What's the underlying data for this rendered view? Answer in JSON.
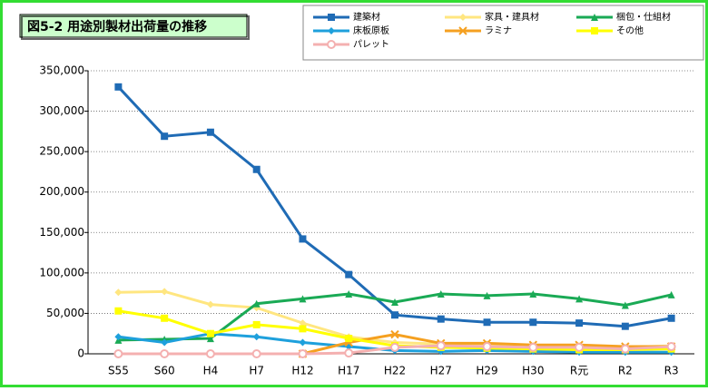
{
  "chart_data": {
    "type": "line",
    "title": "図5-2 用途別製材出荷量の推移",
    "categories": [
      "S55",
      "S60",
      "H4",
      "H7",
      "H12",
      "H17",
      "H22",
      "H27",
      "H29",
      "H30",
      "R元",
      "R2",
      "R3"
    ],
    "ylim": [
      0,
      350000
    ],
    "yticks": [
      0,
      {
        "value": 50000,
        "label": "50,000"
      },
      {
        "value": 100000,
        "label": "100,000"
      },
      {
        "value": 150000,
        "label": "150,000"
      },
      {
        "value": 200000,
        "label": "200,000"
      },
      {
        "value": 250000,
        "label": "250,000"
      },
      {
        "value": 300000,
        "label": "300,000"
      },
      {
        "value": 350000,
        "label": "350,000"
      }
    ],
    "grid": true,
    "series": [
      {
        "name": "建築材",
        "color": "#1f6bb5",
        "marker": "square",
        "values": [
          330000,
          269000,
          274000,
          228000,
          142000,
          98000,
          48000,
          43000,
          39000,
          39000,
          38000,
          34000,
          44000
        ]
      },
      {
        "name": "家具・建具材",
        "color": "#ffe680",
        "marker": "diamond",
        "values": [
          76000,
          77000,
          61000,
          57000,
          38000,
          21000,
          14000,
          12000,
          12000,
          10000,
          10000,
          8000,
          10000
        ]
      },
      {
        "name": "梱包・仕組材",
        "color": "#1aaa55",
        "marker": "triangle",
        "values": [
          17000,
          18000,
          19000,
          62000,
          68000,
          74000,
          64000,
          74000,
          72000,
          74000,
          68000,
          60000,
          73000
        ]
      },
      {
        "name": "床板原板",
        "color": "#1ea0dc",
        "marker": "diamond",
        "values": [
          21000,
          14000,
          25000,
          21000,
          14000,
          9000,
          4000,
          3000,
          4000,
          3000,
          2000,
          2000,
          2000
        ]
      },
      {
        "name": "ラミナ",
        "color": "#f5a020",
        "marker": "x",
        "values": [
          null,
          null,
          null,
          null,
          0,
          14000,
          24000,
          13000,
          13000,
          11000,
          11000,
          9000,
          9000
        ]
      },
      {
        "name": "その他",
        "color": "#ffff00",
        "marker": "square",
        "values": [
          53000,
          44000,
          25000,
          36000,
          31000,
          19000,
          10000,
          8000,
          7000,
          6000,
          5000,
          5000,
          6000
        ]
      },
      {
        "name": "パレット",
        "color": "#f4b0b0",
        "marker": "circle",
        "values": [
          0,
          0,
          0,
          0,
          0,
          1000,
          8000,
          10000,
          9000,
          8000,
          8000,
          6000,
          9000
        ]
      }
    ]
  }
}
